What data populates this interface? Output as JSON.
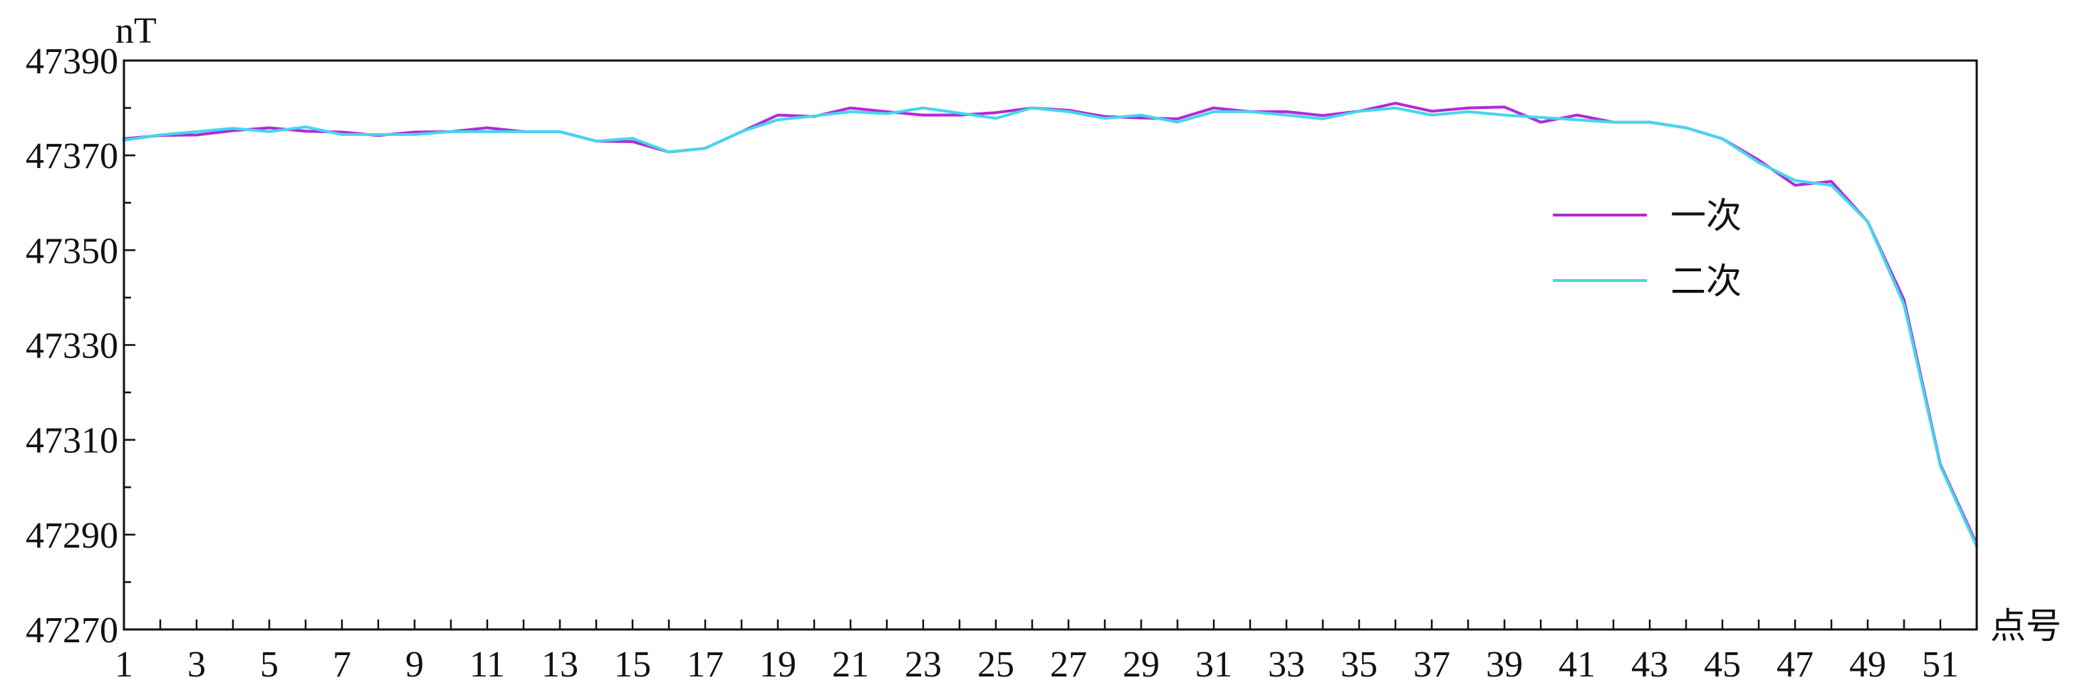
{
  "chart_data": {
    "type": "line",
    "title": "",
    "xlabel": "点号",
    "ylabel": "nT",
    "xlim": [
      1,
      52
    ],
    "ylim": [
      47270,
      47390
    ],
    "x_tick_values": [
      1,
      3,
      5,
      7,
      9,
      11,
      13,
      15,
      17,
      19,
      21,
      23,
      25,
      27,
      29,
      31,
      33,
      35,
      37,
      39,
      41,
      43,
      45,
      47,
      49,
      51
    ],
    "y_tick_values": [
      47270,
      47290,
      47310,
      47330,
      47350,
      47370,
      47390
    ],
    "grid": false,
    "legend_position": "right",
    "x": [
      1,
      2,
      3,
      4,
      5,
      6,
      7,
      8,
      9,
      10,
      11,
      12,
      13,
      14,
      15,
      16,
      17,
      18,
      19,
      20,
      21,
      22,
      23,
      24,
      25,
      26,
      27,
      28,
      29,
      30,
      31,
      32,
      33,
      34,
      35,
      36,
      37,
      38,
      39,
      40,
      41,
      42,
      43,
      44,
      45,
      46,
      47,
      48,
      49,
      50,
      51,
      52
    ],
    "series": [
      {
        "name": "一次",
        "color": "#b12bd8",
        "values": [
          47373.5,
          47374.2,
          47374.3,
          47375.2,
          47375.8,
          47375.1,
          47374.9,
          47374.2,
          47374.9,
          47375.0,
          47375.8,
          47375.0,
          47375.0,
          47373.0,
          47372.9,
          47370.7,
          47371.5,
          47375.0,
          47378.5,
          47378.2,
          47380.0,
          47379.2,
          47378.5,
          47378.5,
          47379.0,
          47380.0,
          47379.5,
          47378.2,
          47377.9,
          47377.7,
          47380.0,
          47379.2,
          47379.2,
          47378.4,
          47379.3,
          47381.0,
          47379.3,
          47380.0,
          47380.2,
          47377.0,
          47378.5,
          47377.0,
          47377.0,
          47375.8,
          47373.5,
          47369.0,
          47363.7,
          47364.5,
          47356.0,
          47339.5,
          47304.8,
          47288.0
        ]
      },
      {
        "name": "二次",
        "color": "#45d6ec",
        "values": [
          47373.2,
          47374.3,
          47375.0,
          47375.7,
          47375.0,
          47376.0,
          47374.4,
          47374.4,
          47374.4,
          47375.0,
          47375.0,
          47375.0,
          47375.0,
          47373.0,
          47373.6,
          47370.7,
          47371.5,
          47375.0,
          47377.5,
          47378.3,
          47379.2,
          47378.8,
          47380.0,
          47378.9,
          47377.8,
          47380.0,
          47379.2,
          47377.8,
          47378.5,
          47377.0,
          47379.2,
          47379.2,
          47378.5,
          47377.7,
          47379.3,
          47380.0,
          47378.5,
          47379.2,
          47378.5,
          47378.0,
          47377.5,
          47377.0,
          47377.0,
          47375.8,
          47373.5,
          47368.5,
          47364.7,
          47363.7,
          47356.0,
          47338.5,
          47304.5,
          47287.5
        ]
      }
    ]
  }
}
